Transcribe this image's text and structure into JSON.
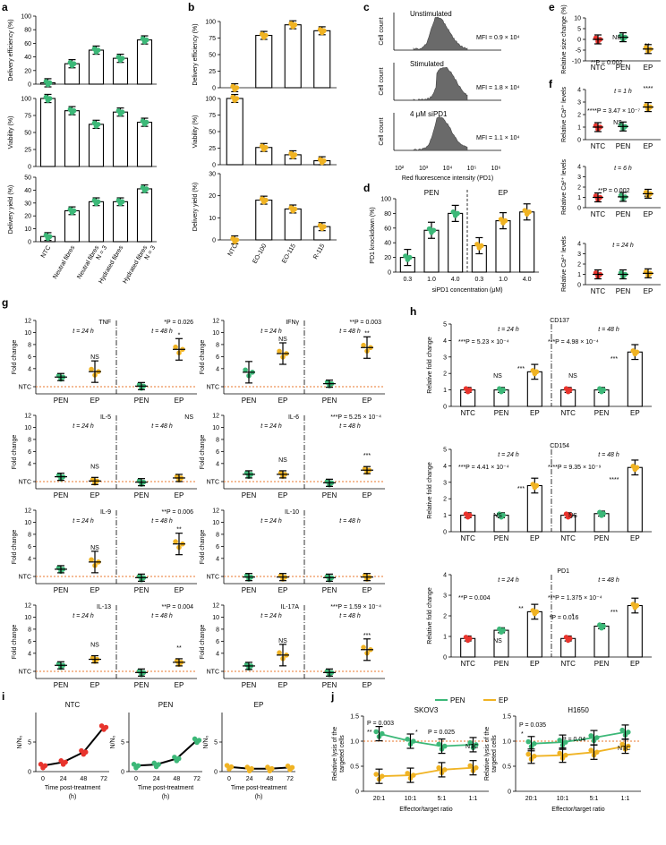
{
  "colors": {
    "green": "#3cb878",
    "gold": "#f0b323",
    "red": "#e8342d",
    "orange": "#e8772e",
    "black": "#000000",
    "gray": "#6a6a6a"
  },
  "panel_letters": {
    "a": "a",
    "b": "b",
    "c": "c",
    "d": "d",
    "e": "e",
    "f": "f",
    "g": "g",
    "h": "h",
    "i": "i",
    "j": "j"
  },
  "chart_data": [
    {
      "id": "a1",
      "type": "bar",
      "ylabel": "Delivery efficiency (%)",
      "ylim": [
        0,
        100
      ],
      "yticks": [
        0,
        20,
        40,
        60,
        80,
        100
      ],
      "categories": [
        "NTC",
        "Neutral fibres",
        "Neutral fibres N = 3",
        "Hydrated fibres",
        "Hydrated fibres N = 3"
      ],
      "values": [
        2,
        30,
        50,
        38,
        65
      ]
    },
    {
      "id": "a2",
      "type": "bar",
      "ylabel": "Viability (%)",
      "ylim": [
        0,
        100
      ],
      "yticks": [
        0,
        25,
        50,
        75,
        100
      ],
      "categories": [
        "NTC",
        "Neutral fibres",
        "Neutral fibres N = 3",
        "Hydrated fibres",
        "Hydrated fibres N = 3"
      ],
      "values": [
        100,
        82,
        62,
        80,
        65
      ]
    },
    {
      "id": "a3",
      "type": "bar",
      "ylabel": "Delivery yield (%)",
      "ylim": [
        0,
        50
      ],
      "yticks": [
        0,
        10,
        20,
        30,
        40,
        50
      ],
      "categories": [
        "NTC",
        "Neutral fibres",
        "Neutral fibres N = 3",
        "Hydrated fibres",
        "Hydrated fibres N = 3"
      ],
      "values": [
        4,
        24,
        31,
        31,
        41
      ],
      "xtick_labels": [
        "NTC",
        "Neutral fibres",
        "Neutral fibres",
        "Hydrated fibres",
        "Hydrated fibres"
      ],
      "xtick_labels_2": [
        "",
        "",
        "N = 3",
        "",
        "N = 3"
      ]
    },
    {
      "id": "b1",
      "type": "bar",
      "ylabel": "Delivery efficiency (%)",
      "ylim": [
        0,
        100
      ],
      "yticks": [
        0,
        25,
        50,
        75,
        100
      ],
      "categories": [
        "NTC",
        "EO-100",
        "EO-115",
        "R-115"
      ],
      "values": [
        0,
        79,
        95,
        86
      ]
    },
    {
      "id": "b2",
      "type": "bar",
      "ylabel": "Viability (%)",
      "ylim": [
        0,
        100
      ],
      "yticks": [
        0,
        25,
        50,
        75,
        100
      ],
      "categories": [
        "NTC",
        "EO-100",
        "EO-115",
        "R-115"
      ],
      "values": [
        100,
        26,
        15,
        6
      ]
    },
    {
      "id": "b3",
      "type": "bar",
      "ylabel": "Delivery yield (%)",
      "ylim": [
        0,
        30
      ],
      "yticks": [
        0,
        10,
        20,
        30
      ],
      "categories": [
        "NTC",
        "EO-100",
        "EO-115",
        "R-115"
      ],
      "values": [
        0,
        18,
        14,
        6
      ]
    },
    {
      "id": "c",
      "type": "histogram",
      "xlabel": "Red fluorescence intensity (PD1)",
      "ylabel": "Cell count",
      "xticks": [
        "10²",
        "10³",
        "10⁴",
        "10⁵",
        "10⁶"
      ],
      "panels": [
        {
          "label": "Unstimulated",
          "mfi": "MFI = 0.9 × 10⁴"
        },
        {
          "label": "Stimulated",
          "mfi": "MFI = 1.8 × 10⁴"
        },
        {
          "label": "4 μM siPD1",
          "mfi": "MFI = 1.1 × 10⁴"
        }
      ]
    },
    {
      "id": "d",
      "type": "bar",
      "ylabel": "PD1 knockdown (%)",
      "xlabel": "siPD1 concentration (μM)",
      "ylim": [
        0,
        100
      ],
      "yticks": [
        0,
        20,
        40,
        60,
        80,
        100
      ],
      "groups": [
        "PEN",
        "EP"
      ],
      "categories": [
        "0.3",
        "1.0",
        "4.0",
        "0.3",
        "1.0",
        "4.0"
      ],
      "values": [
        20,
        57,
        80,
        36,
        70,
        82
      ]
    },
    {
      "id": "e",
      "type": "scatter",
      "ylabel": "Relative size change (%)",
      "ylim": [
        -10,
        10
      ],
      "yticks": [
        -10,
        -5,
        0,
        5,
        10
      ],
      "categories": [
        "NTC",
        "PEN",
        "EP"
      ],
      "values": [
        0,
        1,
        -4.5
      ],
      "annotations": [
        "NS",
        "**",
        "**P = 0.002"
      ]
    },
    {
      "id": "f1",
      "type": "scatter",
      "ylabel": "Relative Ca²⁺ levels",
      "time": "t = 1 h",
      "ylim": [
        0,
        4
      ],
      "yticks": [
        0,
        1,
        2,
        3,
        4
      ],
      "categories": [
        "NTC",
        "PEN",
        "EP"
      ],
      "values": [
        1,
        1.05,
        2.6
      ],
      "annotations": [
        "NS",
        "****",
        "****P = 3.47 × 10⁻⁷"
      ]
    },
    {
      "id": "f2",
      "type": "scatter",
      "ylabel": "Relative Ca²⁺ levels",
      "time": "t = 6 h",
      "ylim": [
        0,
        4
      ],
      "yticks": [
        0,
        1,
        2,
        3,
        4
      ],
      "categories": [
        "NTC",
        "PEN",
        "EP"
      ],
      "values": [
        1,
        1.05,
        1.35
      ],
      "annotations": [
        "**P = 0.002",
        "**"
      ]
    },
    {
      "id": "f3",
      "type": "scatter",
      "ylabel": "Relative Ca²⁺ levels",
      "time": "t = 24 h",
      "ylim": [
        0,
        4
      ],
      "yticks": [
        0,
        1,
        2,
        3,
        4
      ],
      "categories": [
        "NTC",
        "PEN",
        "EP"
      ],
      "values": [
        1,
        1,
        1.1
      ]
    },
    {
      "id": "g_TNF",
      "type": "scatter",
      "title": "TNF",
      "ylabel": "Fold change",
      "yticks": [
        "NTC",
        "4",
        "6",
        "8",
        "10",
        "12"
      ],
      "times": [
        "t = 24 h",
        "t = 48 h"
      ],
      "categories": [
        "PEN",
        "EP",
        "PEN",
        "EP"
      ],
      "values": [
        2.6,
        3.5,
        1.1,
        7.2
      ],
      "annotations": [
        "NS",
        "*P = 0.026",
        "*"
      ]
    },
    {
      "id": "g_IFNg",
      "type": "scatter",
      "title": "IFNγ",
      "ylabel": "Fold change",
      "yticks": [
        "NTC",
        "4",
        "6",
        "8",
        "10",
        "12"
      ],
      "times": [
        "t = 24 h",
        "t = 48 h"
      ],
      "categories": [
        "PEN",
        "EP",
        "PEN",
        "EP"
      ],
      "values": [
        3.4,
        6.5,
        1.5,
        7.5
      ],
      "annotations": [
        "NS",
        "**P = 0.003",
        "**"
      ]
    },
    {
      "id": "g_IL5",
      "type": "scatter",
      "title": "IL-5",
      "ylabel": "Fold change",
      "yticks": [
        "NTC",
        "4",
        "6",
        "8",
        "10",
        "12"
      ],
      "times": [
        "t = 24 h",
        "t = 48 h"
      ],
      "categories": [
        "PEN",
        "EP",
        "PEN",
        "EP"
      ],
      "values": [
        1.8,
        1.1,
        0.9,
        1.6
      ],
      "annotations": [
        "NS",
        "NS"
      ]
    },
    {
      "id": "g_IL6",
      "type": "scatter",
      "title": "IL-6",
      "ylabel": "Fold change",
      "yticks": [
        "NTC",
        "4",
        "6",
        "8",
        "10",
        "12"
      ],
      "times": [
        "t = 24 h",
        "t = 48 h"
      ],
      "categories": [
        "PEN",
        "EP",
        "PEN",
        "EP"
      ],
      "values": [
        2.2,
        2.2,
        0.8,
        2.9
      ],
      "annotations": [
        "NS",
        "***P = 5.25 × 10⁻⁴",
        "***"
      ]
    },
    {
      "id": "g_IL9",
      "type": "scatter",
      "title": "IL-9",
      "ylabel": "Fold change",
      "yticks": [
        "NTC",
        "4",
        "6",
        "8",
        "10",
        "12"
      ],
      "times": [
        "t = 24 h",
        "t = 48 h"
      ],
      "categories": [
        "PEN",
        "EP",
        "PEN",
        "EP"
      ],
      "values": [
        2.2,
        3.4,
        0.8,
        6.4
      ],
      "annotations": [
        "NS",
        "**P = 0.006",
        "**"
      ]
    },
    {
      "id": "g_IL10",
      "type": "scatter",
      "title": "IL-10",
      "ylabel": "Fold change",
      "yticks": [
        "NTC",
        "4",
        "6",
        "8",
        "10",
        "12"
      ],
      "times": [
        "t = 24 h",
        "t = 48 h"
      ],
      "categories": [
        "PEN",
        "EP",
        "PEN",
        "EP"
      ],
      "values": [
        0.9,
        0.9,
        0.8,
        0.9
      ]
    },
    {
      "id": "g_IL13",
      "type": "scatter",
      "title": "IL-13",
      "ylabel": "Fold change",
      "yticks": [
        "NTC",
        "4",
        "6",
        "8",
        "10",
        "12"
      ],
      "times": [
        "t = 24 h",
        "t = 48 h"
      ],
      "categories": [
        "PEN",
        "EP",
        "PEN",
        "EP"
      ],
      "values": [
        2.0,
        3.0,
        0.8,
        2.5
      ],
      "annotations": [
        "NS",
        "**P = 0.004",
        "**"
      ]
    },
    {
      "id": "g_IL17A",
      "type": "scatter",
      "title": "IL-17A",
      "ylabel": "Fold change",
      "yticks": [
        "NTC",
        "4",
        "6",
        "8",
        "10",
        "12"
      ],
      "times": [
        "t = 24 h",
        "t = 48 h"
      ],
      "categories": [
        "PEN",
        "EP",
        "PEN",
        "EP"
      ],
      "values": [
        1.9,
        3.7,
        0.8,
        4.6
      ],
      "annotations": [
        "NS",
        "***P = 1.59 × 10⁻⁴",
        "***"
      ]
    },
    {
      "id": "h_CD137",
      "type": "bar",
      "title": "CD137",
      "ylabel": "Relative fold change",
      "ylim": [
        0,
        5
      ],
      "yticks": [
        0,
        1,
        2,
        3,
        4,
        5
      ],
      "times": [
        "t = 24 h",
        "t = 48 h"
      ],
      "categories": [
        "NTC",
        "PEN",
        "EP",
        "NTC",
        "PEN",
        "EP"
      ],
      "values": [
        1,
        1,
        2.1,
        1,
        1,
        3.3
      ],
      "annotations": [
        "***P = 5.23 × 10⁻⁴",
        "***P = 4.98 × 10⁻⁴",
        "NS",
        "***",
        "NS",
        "***"
      ]
    },
    {
      "id": "h_CD154",
      "type": "bar",
      "title": "CD154",
      "ylabel": "Relative fold change",
      "ylim": [
        0,
        5
      ],
      "yticks": [
        0,
        1,
        2,
        3,
        4,
        5
      ],
      "times": [
        "t = 24 h",
        "t = 48 h"
      ],
      "categories": [
        "NTC",
        "PEN",
        "EP",
        "NTC",
        "PEN",
        "EP"
      ],
      "values": [
        1,
        1,
        2.8,
        1,
        1.1,
        3.9
      ],
      "annotations": [
        "***P = 4.41 × 10⁻⁴",
        "****P = 9.35 × 10⁻⁹",
        "NS",
        "***",
        "NS",
        "****"
      ]
    },
    {
      "id": "h_PD1",
      "type": "bar",
      "title": "PD1",
      "ylabel": "Relative fold change",
      "ylim": [
        0,
        4
      ],
      "yticks": [
        0,
        1,
        2,
        3,
        4
      ],
      "times": [
        "t = 24 h",
        "t = 48 h"
      ],
      "categories": [
        "NTC",
        "PEN",
        "EP",
        "NTC",
        "PEN",
        "EP"
      ],
      "values": [
        0.9,
        1.3,
        2.2,
        0.9,
        1.5,
        2.5
      ],
      "annotations": [
        "**P = 0.004",
        "***P = 1.375 × 10⁻⁴",
        "*P = 0.016",
        "NS",
        "**",
        "*",
        "***"
      ]
    },
    {
      "id": "i_NTC",
      "type": "line",
      "title": "NTC",
      "ylabel": "N/N₀",
      "xlabel": "Time post-treatment (h)",
      "x": [
        0,
        24,
        48,
        72
      ],
      "values": [
        1,
        1.6,
        3.3,
        7.5
      ],
      "ylim": [
        0,
        10
      ],
      "yticks": [
        0,
        5
      ]
    },
    {
      "id": "i_PEN",
      "type": "line",
      "title": "PEN",
      "ylabel": "N/N₀",
      "xlabel": "Time post-treatment (h)",
      "x": [
        0,
        24,
        48,
        72
      ],
      "values": [
        1,
        1.2,
        2.2,
        5.3
      ],
      "ylim": [
        0,
        10
      ],
      "yticks": [
        0,
        5
      ]
    },
    {
      "id": "i_EP",
      "type": "line",
      "title": "EP",
      "ylabel": "N/N₀",
      "xlabel": "Time post-treatment (h)",
      "x": [
        0,
        24,
        48,
        72
      ],
      "values": [
        0.8,
        0.5,
        0.5,
        0.7
      ],
      "ylim": [
        0,
        10
      ],
      "yticks": [
        0,
        5
      ]
    },
    {
      "id": "j_SKOV3",
      "type": "line",
      "title": "SKOV3",
      "ylabel": "Relative lysis of the targeted cells",
      "xlabel": "Effector/target ratio",
      "categories": [
        "20:1",
        "10:1",
        "5:1",
        "1:1"
      ],
      "ylim": [
        0,
        1.5
      ],
      "yticks": [
        0,
        0.5,
        1.0,
        1.5
      ],
      "series": [
        {
          "name": "PEN",
          "values": [
            1.15,
            1.0,
            0.9,
            0.93
          ]
        },
        {
          "name": "EP",
          "values": [
            0.3,
            0.32,
            0.43,
            0.47
          ]
        }
      ],
      "annotations": [
        "P = 0.003",
        "**",
        "*",
        "P = 0.025",
        "NTC"
      ]
    },
    {
      "id": "j_H1650",
      "type": "line",
      "title": "H1650",
      "ylabel": "Relative lysis of the targeted cells",
      "xlabel": "Effector/target ratio",
      "categories": [
        "20:1",
        "10:1",
        "5:1",
        "1:1"
      ],
      "ylim": [
        0,
        1.5
      ],
      "yticks": [
        0,
        0.5,
        1.0,
        1.5
      ],
      "series": [
        {
          "name": "PEN",
          "values": [
            0.95,
            0.98,
            1.07,
            1.18
          ]
        },
        {
          "name": "EP",
          "values": [
            0.7,
            0.72,
            0.78,
            0.9
          ]
        }
      ],
      "annotations": [
        "P = 0.035",
        "*",
        "P = 0.04",
        "NTC"
      ]
    }
  ],
  "legend_j": {
    "pen": "PEN",
    "ep": "EP"
  },
  "g_ntc_label": "NTC"
}
